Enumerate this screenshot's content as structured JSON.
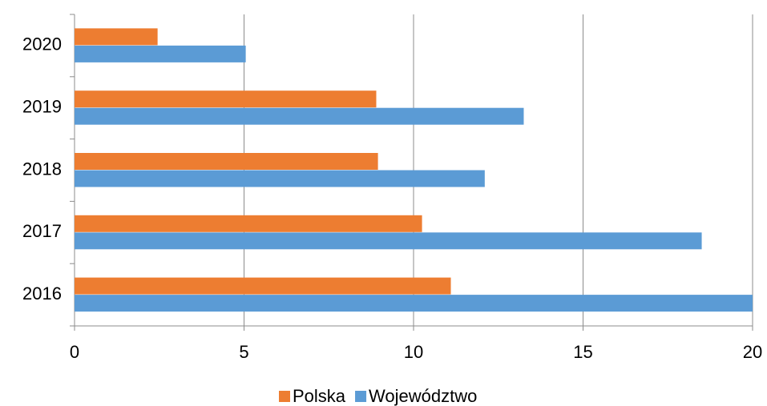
{
  "chart_data": {
    "type": "hbar",
    "categories": [
      "2016",
      "2017",
      "2018",
      "2019",
      "2020"
    ],
    "series": [
      {
        "name": "Polska",
        "color": "#ed7d31",
        "values": [
          11.1,
          10.25,
          8.95,
          8.9,
          2.45
        ]
      },
      {
        "name": "Województwo",
        "color": "#5b9bd5",
        "values": [
          20,
          18.5,
          12.1,
          13.25,
          5.05
        ]
      }
    ],
    "xlim": [
      0,
      20
    ],
    "xticks": [
      0,
      5,
      10,
      15,
      20
    ],
    "grid": true,
    "legend": "bottom"
  }
}
